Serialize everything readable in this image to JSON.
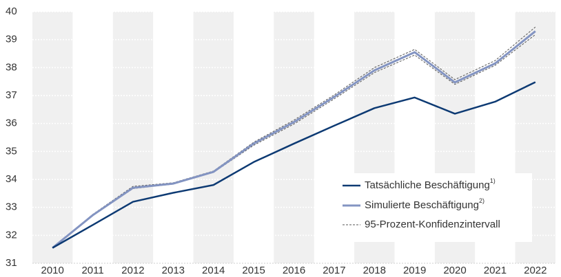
{
  "chart_data": {
    "type": "line",
    "categories": [
      "2010",
      "2011",
      "2012",
      "2013",
      "2014",
      "2015",
      "2016",
      "2017",
      "2018",
      "2019",
      "2020",
      "2021",
      "2022"
    ],
    "series": [
      {
        "name": "Tatsächliche Beschäftigung",
        "footnote": "1)",
        "color": "#0d3a73",
        "values": [
          31.55,
          32.37,
          33.2,
          33.52,
          33.8,
          34.62,
          35.28,
          35.92,
          36.55,
          36.93,
          36.35,
          36.78,
          37.48
        ]
      },
      {
        "name": "Simulierte Beschäftigung",
        "footnote": "2)",
        "color": "#8394c2",
        "values": [
          31.55,
          32.72,
          33.7,
          33.85,
          34.27,
          35.28,
          36.05,
          36.95,
          37.9,
          38.55,
          37.47,
          38.15,
          39.3
        ]
      }
    ],
    "confidence_interval": {
      "name": "95-Prozent-Konfidenzintervall",
      "color": "#555555",
      "upper": [
        31.55,
        32.75,
        33.75,
        33.88,
        34.3,
        35.33,
        36.12,
        37.02,
        38.0,
        38.65,
        37.57,
        38.25,
        39.45
      ],
      "lower": [
        31.55,
        32.7,
        33.67,
        33.83,
        34.25,
        35.22,
        35.98,
        36.88,
        37.82,
        38.45,
        37.4,
        38.08,
        39.18
      ]
    },
    "ylim": [
      31,
      40
    ],
    "yticks": [
      31,
      32,
      33,
      34,
      35,
      36,
      37,
      38,
      39,
      40
    ],
    "grid": true
  }
}
